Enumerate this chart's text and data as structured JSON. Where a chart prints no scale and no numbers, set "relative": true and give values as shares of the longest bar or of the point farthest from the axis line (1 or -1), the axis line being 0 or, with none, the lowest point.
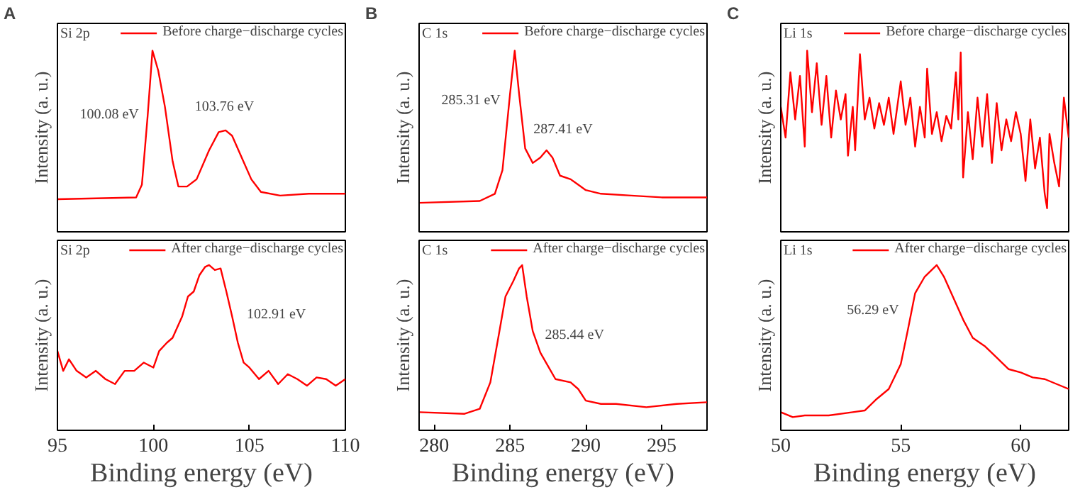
{
  "chart_data": [
    {
      "type": "line",
      "title": "A",
      "ylabel": "Intensity (a. u.)",
      "relative": true,
      "xlim": [
        95,
        110
      ],
      "xticks": [
        95,
        100,
        105,
        110
      ],
      "tick_labels": false,
      "grid": false,
      "legend": "top right",
      "annotations": [
        "Si 2p",
        "100.08 eV",
        "103.76 eV"
      ],
      "series": [
        {
          "name": "Before charge−discharge cycles",
          "color": "#ff0000",
          "x": [
            95,
            99.1,
            99.4,
            99.7,
            99.95,
            100.25,
            100.6,
            101.0,
            101.3,
            101.75,
            102.25,
            102.9,
            103.4,
            103.76,
            104.1,
            104.6,
            105.1,
            105.6,
            106.6,
            108.1,
            110
          ],
          "values": [
            0.18,
            0.19,
            0.26,
            0.64,
            1.0,
            0.89,
            0.69,
            0.39,
            0.25,
            0.25,
            0.29,
            0.45,
            0.55,
            0.56,
            0.53,
            0.41,
            0.29,
            0.22,
            0.2,
            0.21,
            0.21
          ]
        }
      ]
    },
    {
      "type": "line",
      "title": "B",
      "ylabel": "Intensity (a. u.)",
      "relative": true,
      "xlim": [
        279,
        298
      ],
      "xticks": [
        280,
        285,
        290,
        295
      ],
      "tick_labels": false,
      "grid": false,
      "legend": "top right",
      "annotations": [
        "C 1s",
        "285.31 eV",
        "287.41 eV"
      ],
      "series": [
        {
          "name": "Before charge−discharge cycles",
          "color": "#ff0000",
          "x": [
            279,
            283,
            284,
            284.5,
            285,
            285.31,
            285.6,
            286,
            286.5,
            287,
            287.41,
            287.8,
            288.3,
            289,
            289.5,
            290,
            291,
            293,
            295,
            298
          ],
          "values": [
            0.16,
            0.17,
            0.21,
            0.34,
            0.76,
            1.0,
            0.76,
            0.46,
            0.38,
            0.41,
            0.45,
            0.41,
            0.31,
            0.29,
            0.26,
            0.23,
            0.21,
            0.2,
            0.19,
            0.19
          ]
        }
      ]
    },
    {
      "type": "line",
      "title": "C",
      "ylabel": "Intensity (a. u.)",
      "relative": true,
      "xlim": [
        50,
        62
      ],
      "xticks": [
        50,
        55,
        60
      ],
      "tick_labels": false,
      "grid": false,
      "legend": "top right",
      "annotations": [
        "Li 1s"
      ],
      "series": [
        {
          "name": "Before charge−discharge cycles",
          "color": "#ff0000",
          "x": [
            50,
            50.2,
            50.4,
            50.6,
            50.8,
            51,
            51.1,
            51.3,
            51.5,
            51.7,
            51.9,
            52.1,
            52.3,
            52.5,
            52.7,
            52.8,
            53,
            53.1,
            53.3,
            53.5,
            53.7,
            53.9,
            54.1,
            54.3,
            54.5,
            54.7,
            55,
            55.2,
            55.4,
            55.6,
            55.8,
            56,
            56.1,
            56.3,
            56.5,
            56.7,
            56.9,
            57.1,
            57.3,
            57.4,
            57.5,
            57.6,
            57.8,
            58,
            58.2,
            58.4,
            58.6,
            58.8,
            59,
            59.2,
            59.4,
            59.6,
            59.8,
            60,
            60.2,
            60.4,
            60.6,
            60.8,
            61,
            61.1,
            61.2,
            61.4,
            61.6,
            61.8,
            62
          ],
          "values": [
            0.69,
            0.52,
            0.88,
            0.62,
            0.86,
            0.47,
            1.0,
            0.66,
            0.93,
            0.59,
            0.86,
            0.52,
            0.78,
            0.62,
            0.76,
            0.42,
            0.69,
            0.45,
            0.98,
            0.62,
            0.74,
            0.57,
            0.71,
            0.59,
            0.74,
            0.54,
            0.83,
            0.59,
            0.74,
            0.47,
            0.69,
            0.52,
            0.9,
            0.54,
            0.66,
            0.5,
            0.64,
            0.57,
            0.88,
            0.62,
            0.99,
            0.3,
            0.66,
            0.4,
            0.74,
            0.47,
            0.76,
            0.38,
            0.71,
            0.45,
            0.62,
            0.5,
            0.66,
            0.54,
            0.28,
            0.62,
            0.35,
            0.52,
            0.21,
            0.13,
            0.54,
            0.38,
            0.25,
            0.74,
            0.52
          ]
        }
      ]
    },
    {
      "type": "line",
      "xlabel": "Binding energy (eV)",
      "ylabel": "Intensity (a. u.)",
      "relative": true,
      "xlim": [
        95,
        110
      ],
      "xticks": [
        95,
        100,
        105,
        110
      ],
      "tick_labels": "x",
      "grid": false,
      "legend": "top right",
      "annotations": [
        "Si 2p",
        "102.91 eV"
      ],
      "series": [
        {
          "name": "After charge−discharge cycles",
          "color": "#ff0000",
          "x": [
            95,
            95.3,
            95.6,
            96,
            96.5,
            97,
            97.5,
            98,
            98.5,
            99,
            99.5,
            100,
            100.3,
            100.7,
            101,
            101.5,
            101.8,
            102.1,
            102.4,
            102.7,
            102.9,
            103.2,
            103.5,
            103.8,
            104.1,
            104.4,
            104.7,
            105,
            105.5,
            106,
            106.5,
            107,
            107.5,
            108,
            108.5,
            109,
            109.5,
            110
          ],
          "values": [
            0.48,
            0.36,
            0.43,
            0.36,
            0.32,
            0.36,
            0.31,
            0.28,
            0.36,
            0.36,
            0.41,
            0.38,
            0.48,
            0.53,
            0.56,
            0.69,
            0.81,
            0.84,
            0.94,
            0.99,
            1.0,
            0.97,
            0.98,
            0.84,
            0.69,
            0.53,
            0.41,
            0.38,
            0.31,
            0.36,
            0.28,
            0.34,
            0.31,
            0.27,
            0.32,
            0.31,
            0.27,
            0.31
          ]
        }
      ]
    },
    {
      "type": "line",
      "xlabel": "Binding energy (eV)",
      "ylabel": "Intensity (a. u.)",
      "relative": true,
      "xlim": [
        279,
        298
      ],
      "xticks": [
        280,
        285,
        290,
        295
      ],
      "tick_labels": "x",
      "grid": false,
      "legend": "top right",
      "annotations": [
        "C 1s",
        "285.44 eV"
      ],
      "series": [
        {
          "name": "After charge−discharge cycles",
          "color": "#ff0000",
          "x": [
            279,
            282,
            283,
            283.7,
            284.3,
            284.7,
            285.2,
            285.6,
            285.8,
            286.1,
            286.5,
            287,
            287.5,
            288,
            289,
            289.5,
            290,
            291,
            292,
            294,
            296,
            298
          ],
          "values": [
            0.11,
            0.1,
            0.13,
            0.29,
            0.6,
            0.81,
            0.9,
            0.98,
            1.0,
            0.81,
            0.6,
            0.47,
            0.39,
            0.31,
            0.29,
            0.25,
            0.18,
            0.16,
            0.16,
            0.14,
            0.16,
            0.17
          ]
        }
      ]
    },
    {
      "type": "line",
      "xlabel": "Binding energy (eV)",
      "ylabel": "Intensity (a. u.)",
      "relative": true,
      "xlim": [
        50,
        62
      ],
      "xticks": [
        50,
        55,
        60
      ],
      "tick_labels": "x",
      "grid": false,
      "legend": "top right",
      "annotations": [
        "Li 1s",
        "56.29 eV"
      ],
      "series": [
        {
          "name": "After charge−discharge cycles",
          "color": "#ff0000",
          "x": [
            50,
            50.5,
            51,
            52,
            53,
            53.5,
            54,
            54.5,
            55,
            55.3,
            55.6,
            56,
            56.5,
            56.8,
            57.2,
            57.6,
            58,
            58.5,
            59,
            59.5,
            60,
            60.5,
            61,
            61.5,
            62
          ],
          "values": [
            0.11,
            0.08,
            0.09,
            0.09,
            0.11,
            0.12,
            0.19,
            0.25,
            0.4,
            0.61,
            0.83,
            0.93,
            1.0,
            0.93,
            0.8,
            0.67,
            0.56,
            0.51,
            0.44,
            0.37,
            0.35,
            0.32,
            0.31,
            0.28,
            0.25
          ]
        }
      ]
    }
  ]
}
